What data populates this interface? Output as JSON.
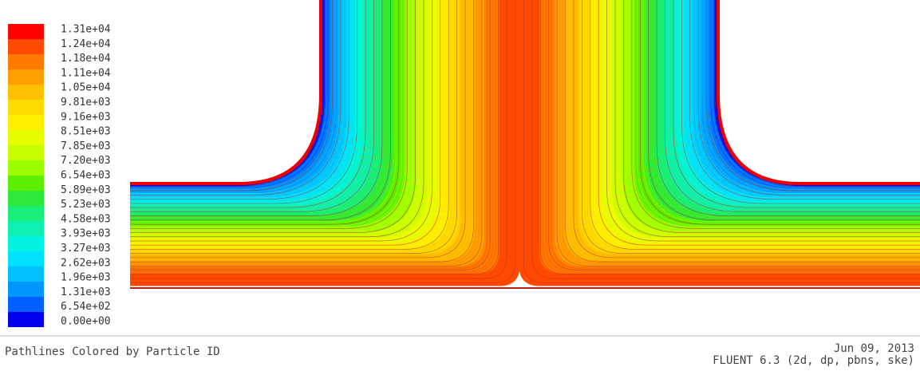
{
  "colorbar": {
    "labels": [
      "1.31e+04",
      "1.24e+04",
      "1.18e+04",
      "1.11e+04",
      "1.05e+04",
      "9.81e+03",
      "9.16e+03",
      "8.51e+03",
      "7.85e+03",
      "7.20e+03",
      "6.54e+03",
      "5.89e+03",
      "5.23e+03",
      "4.58e+03",
      "3.93e+03",
      "3.27e+03",
      "2.62e+03",
      "1.96e+03",
      "1.31e+03",
      "6.54e+02",
      "0.00e+00"
    ],
    "colors": [
      "#ff0000",
      "#ff4a00",
      "#ff7a00",
      "#ffa000",
      "#ffc000",
      "#ffdc00",
      "#fff000",
      "#e6ff00",
      "#c8ff00",
      "#9cff00",
      "#5cf000",
      "#2ee83a",
      "#1aee7a",
      "#10f0b0",
      "#00f4e0",
      "#00e0ff",
      "#00c0ff",
      "#0098ff",
      "#0060ff",
      "#0000f0"
    ]
  },
  "footer": {
    "title": "Pathlines Colored by Particle ID",
    "date": "Jun 09, 2013",
    "version": "FLUENT 6.3 (2d, dp, pbns, ske)"
  }
}
